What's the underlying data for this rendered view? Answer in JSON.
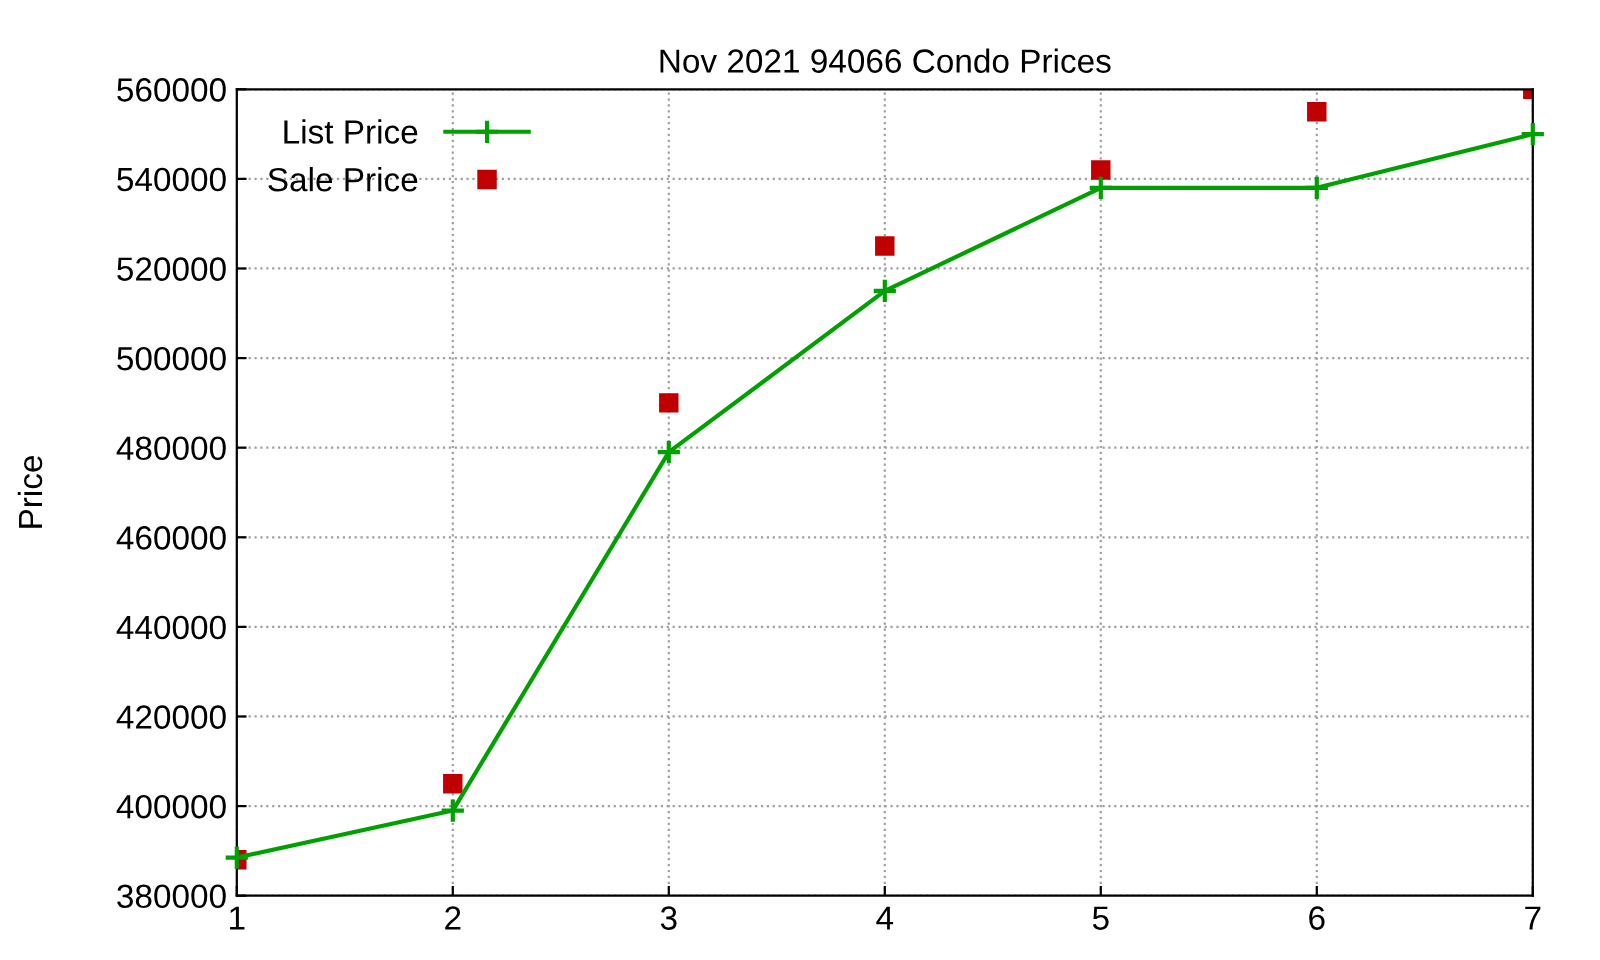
{
  "chart_data": {
    "type": "line",
    "title": "Nov 2021 94066 Condo Prices",
    "ylabel": "Price",
    "x": [
      1,
      2,
      3,
      4,
      5,
      6,
      7
    ],
    "series": [
      {
        "name": "List Price",
        "color": "#00a000",
        "marker": "cross",
        "values": [
          388500,
          399000,
          479000,
          515000,
          538000,
          538000,
          550000
        ]
      },
      {
        "name": "Sale Price",
        "type": "scatter",
        "color": "#c00000",
        "marker": "square",
        "values": [
          388000,
          405000,
          490000,
          525000,
          542000,
          555000,
          560000
        ]
      }
    ],
    "xlim": [
      1,
      7
    ],
    "xticks": [
      1,
      2,
      3,
      4,
      5,
      6,
      7
    ],
    "ylim": [
      380000,
      560000
    ],
    "yticks": [
      380000,
      400000,
      420000,
      440000,
      460000,
      480000,
      500000,
      520000,
      540000,
      560000
    ],
    "grid": true,
    "legend": "top left"
  }
}
